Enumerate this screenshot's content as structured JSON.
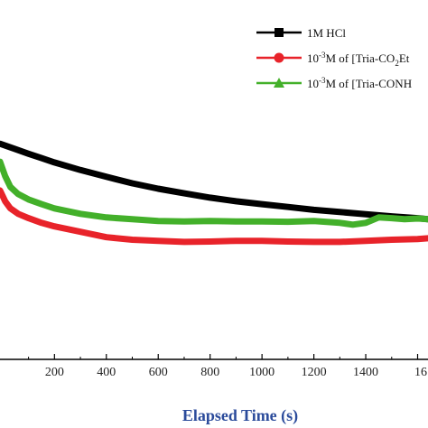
{
  "chart_data": {
    "type": "line",
    "title": "",
    "xlabel": "Elapsed Time (s)",
    "ylabel": "",
    "xlim": [
      -10,
      1640
    ],
    "ylim": [
      0,
      1
    ],
    "x_ticks": [
      200,
      400,
      600,
      800,
      1000,
      1200,
      1400
    ],
    "x_tick_partial": "16",
    "grid": false,
    "legend": "top-right",
    "series": [
      {
        "name": "1M HCl",
        "legend_parts": [
          "1M HCl"
        ],
        "color": "#000000",
        "marker": "square",
        "x": [
          -10,
          50,
          100,
          150,
          200,
          300,
          400,
          500,
          600,
          700,
          800,
          900,
          1000,
          1100,
          1200,
          1300,
          1400,
          1500,
          1600,
          1640
        ],
        "y": [
          0.6,
          0.585,
          0.572,
          0.56,
          0.548,
          0.527,
          0.508,
          0.49,
          0.475,
          0.462,
          0.45,
          0.44,
          0.432,
          0.424,
          0.416,
          0.41,
          0.404,
          0.398,
          0.393,
          0.39
        ]
      },
      {
        "name": "10-3M of [Tria-CO2Et",
        "legend_parts": [
          "10",
          "-3",
          "M of [Tria-CO",
          "2",
          "Et"
        ],
        "color": "#e8232a",
        "marker": "circle",
        "x": [
          -10,
          10,
          30,
          60,
          100,
          150,
          200,
          300,
          400,
          500,
          600,
          700,
          800,
          900,
          1000,
          1100,
          1200,
          1300,
          1400,
          1500,
          1600,
          1640
        ],
        "y": [
          0.47,
          0.44,
          0.42,
          0.405,
          0.393,
          0.38,
          0.37,
          0.355,
          0.34,
          0.333,
          0.33,
          0.327,
          0.328,
          0.33,
          0.33,
          0.328,
          0.327,
          0.327,
          0.33,
          0.333,
          0.335,
          0.337
        ]
      },
      {
        "name": "10-3M of [Tria-CONH",
        "legend_parts": [
          "10",
          "-3",
          "M of [Tria-CONH"
        ],
        "color": "#43b02a",
        "marker": "triangle",
        "x": [
          -10,
          10,
          30,
          60,
          100,
          150,
          200,
          300,
          400,
          500,
          600,
          700,
          800,
          900,
          1000,
          1100,
          1200,
          1300,
          1350,
          1400,
          1450,
          1500,
          1550,
          1600,
          1640
        ],
        "y": [
          0.55,
          0.51,
          0.48,
          0.46,
          0.445,
          0.432,
          0.42,
          0.405,
          0.395,
          0.39,
          0.385,
          0.384,
          0.385,
          0.384,
          0.384,
          0.383,
          0.385,
          0.38,
          0.375,
          0.38,
          0.395,
          0.393,
          0.39,
          0.392,
          0.39
        ]
      }
    ]
  }
}
